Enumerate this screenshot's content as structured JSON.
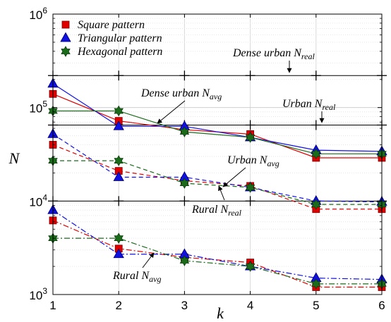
{
  "chart_data": {
    "type": "line",
    "xlabel": "k",
    "ylabel": "N",
    "x": [
      1,
      2,
      3,
      4,
      5,
      6
    ],
    "xticks": [
      "1",
      "2",
      "3",
      "4",
      "5",
      "6"
    ],
    "yscale": "log",
    "ylim": [
      1000,
      1000000
    ],
    "yticks": [
      {
        "value": 1000,
        "base": "10",
        "exp": "3"
      },
      {
        "value": 10000,
        "base": "10",
        "exp": "4"
      },
      {
        "value": 100000,
        "base": "10",
        "exp": "5"
      },
      {
        "value": 1000000,
        "base": "10",
        "exp": "6"
      }
    ],
    "grid": true,
    "legend_position": "top-left",
    "legend": [
      {
        "label": "Square pattern",
        "color": "#e00000",
        "marker": "square"
      },
      {
        "label": "Triangular pattern",
        "color": "#1010e0",
        "marker": "triangle"
      },
      {
        "label": "Hexagonal pattern",
        "color": "#1a6b1a",
        "marker": "hexagram"
      }
    ],
    "series": [
      {
        "pattern": "Square pattern",
        "scenario": "dense-urban",
        "style": "solid",
        "color": "#e00000",
        "marker": "square",
        "values": [
          140000,
          72000,
          58000,
          52000,
          29000,
          29000
        ]
      },
      {
        "pattern": "Triangular pattern",
        "scenario": "dense-urban",
        "style": "solid",
        "color": "#1010e0",
        "marker": "triangle",
        "values": [
          180000,
          63000,
          63000,
          48000,
          35000,
          34000
        ]
      },
      {
        "pattern": "Hexagonal pattern",
        "scenario": "dense-urban",
        "style": "solid",
        "color": "#1a6b1a",
        "marker": "hexagram",
        "values": [
          92000,
          92000,
          55000,
          48000,
          32000,
          32000
        ]
      },
      {
        "pattern": "Square pattern",
        "scenario": "urban",
        "style": "dashed",
        "color": "#e00000",
        "marker": "square",
        "values": [
          40000,
          21000,
          16500,
          14500,
          8200,
          8200
        ]
      },
      {
        "pattern": "Triangular pattern",
        "scenario": "urban",
        "style": "dashed",
        "color": "#1010e0",
        "marker": "triangle",
        "values": [
          52000,
          18000,
          18000,
          14000,
          10000,
          9800
        ]
      },
      {
        "pattern": "Hexagonal pattern",
        "scenario": "urban",
        "style": "dashed",
        "color": "#1a6b1a",
        "marker": "hexagram",
        "values": [
          27000,
          27000,
          15500,
          14000,
          9200,
          9200
        ]
      },
      {
        "pattern": "Square pattern",
        "scenario": "rural",
        "style": "dashdot",
        "color": "#e00000",
        "marker": "square",
        "values": [
          6200,
          3100,
          2500,
          2200,
          1200,
          1200
        ]
      },
      {
        "pattern": "Triangular pattern",
        "scenario": "rural",
        "style": "dashdot",
        "color": "#1010e0",
        "marker": "triangle",
        "values": [
          8000,
          2700,
          2700,
          2000,
          1500,
          1450
        ]
      },
      {
        "pattern": "Hexagonal pattern",
        "scenario": "rural",
        "style": "dashdot",
        "color": "#1a6b1a",
        "marker": "hexagram",
        "values": [
          4000,
          4000,
          2300,
          2000,
          1300,
          1300
        ]
      }
    ],
    "reference_lines": [
      {
        "name": "dense-urban-n-real",
        "value": 220000
      },
      {
        "name": "urban-n-real",
        "value": 65000
      },
      {
        "name": "rural-n-real",
        "value": 10000
      }
    ],
    "annotations": [
      {
        "text": "Dense urban",
        "sub": "real"
      },
      {
        "text": "Dense urban",
        "sub": "avg"
      },
      {
        "text": "Urban",
        "sub": "real"
      },
      {
        "text": "Urban",
        "sub": "avg"
      },
      {
        "text": "Rural",
        "sub": "real"
      },
      {
        "text": "Rural",
        "sub": "avg"
      }
    ],
    "annotation_symbol": "N"
  }
}
